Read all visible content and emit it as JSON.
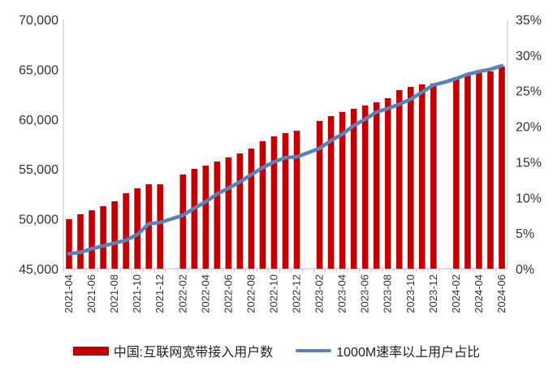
{
  "chart_data": {
    "type": "bar+line",
    "categories": [
      "2021-04",
      "2021-05",
      "2021-06",
      "2021-07",
      "2021-08",
      "2021-09",
      "2021-10",
      "2021-11",
      "2021-12",
      "2022-01",
      "2022-02",
      "2022-03",
      "2022-04",
      "2022-05",
      "2022-06",
      "2022-07",
      "2022-08",
      "2022-09",
      "2022-10",
      "2022-11",
      "2022-12",
      "2023-01",
      "2023-02",
      "2023-03",
      "2023-04",
      "2023-05",
      "2023-06",
      "2023-07",
      "2023-08",
      "2023-09",
      "2023-10",
      "2023-11",
      "2023-12",
      "2024-01",
      "2024-02",
      "2024-03",
      "2024-04",
      "2024-05",
      "2024-06"
    ],
    "tick_labels": [
      "2021-04",
      "2021-06",
      "2021-08",
      "2021-10",
      "2021-12",
      "2022-02",
      "2022-04",
      "2022-06",
      "2022-08",
      "2022-10",
      "2022-12",
      "2023-02",
      "2023-04",
      "2023-06",
      "2023-08",
      "2023-10",
      "2023-12",
      "2024-02",
      "2024-04",
      "2024-06"
    ],
    "series": [
      {
        "name": "中国:互联网宽带接入用户数",
        "type": "bar",
        "axis": "left",
        "color": "#C00000",
        "values": [
          49970,
          50460,
          50860,
          51270,
          51760,
          52570,
          53060,
          53470,
          53470,
          null,
          54450,
          55020,
          55340,
          55750,
          56160,
          56560,
          57050,
          57790,
          58270,
          58600,
          58840,
          null,
          59820,
          60310,
          60720,
          61040,
          61370,
          61690,
          62100,
          62920,
          63240,
          63490,
          63570,
          null,
          64220,
          64460,
          64630,
          64790,
          65280
        ]
      },
      {
        "name": "1000M速率以上用户占比",
        "type": "line",
        "axis": "right",
        "color": "#5B82B8",
        "values": [
          2.1,
          2.3,
          2.8,
          3.2,
          3.6,
          4.0,
          4.8,
          6.3,
          6.5,
          7.0,
          7.5,
          8.5,
          9.4,
          10.5,
          11.3,
          12.2,
          13.2,
          14.2,
          15.0,
          15.6,
          15.7,
          16.3,
          16.9,
          18.0,
          18.9,
          20.1,
          21.0,
          22.0,
          22.5,
          23.1,
          23.8,
          24.8,
          25.8,
          26.2,
          26.7,
          27.3,
          27.7,
          28.0,
          28.5
        ]
      }
    ],
    "y_left": {
      "range": [
        45000,
        70000
      ],
      "ticks": [
        "45,000",
        "50,000",
        "55,000",
        "60,000",
        "65,000",
        "70,000"
      ]
    },
    "y_right": {
      "range": [
        0,
        35
      ],
      "ticks": [
        "0%",
        "5%",
        "10%",
        "15%",
        "20%",
        "25%",
        "30%",
        "35%"
      ]
    },
    "grid": false,
    "legend_position": "bottom"
  }
}
